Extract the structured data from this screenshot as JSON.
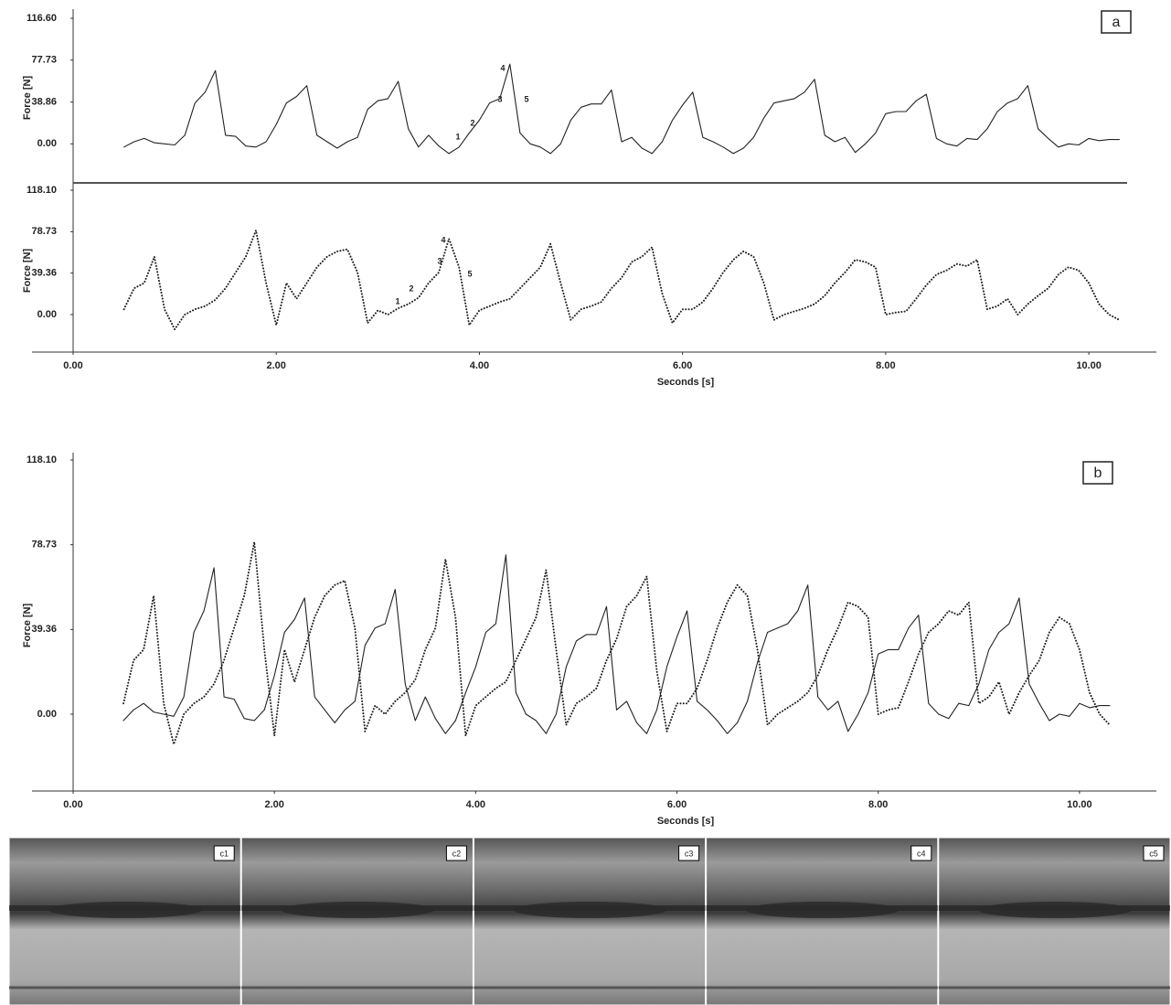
{
  "chart_data": [
    {
      "type": "line",
      "panel_label": "a",
      "ylabel": "Force [N]",
      "line_style": "solid",
      "color": "#222222",
      "ylim": [
        -32,
        116.6
      ],
      "yticks": [
        {
          "value": 0,
          "label": "0.00"
        },
        38.86,
        77.73,
        {
          "value": 116.6,
          "label": "116.60"
        }
      ],
      "xlim": [
        0,
        10.8
      ],
      "annotations": [
        "1",
        "2",
        "3",
        "4",
        "5"
      ],
      "x": [
        0.5,
        0.6,
        0.7,
        0.8,
        0.9,
        1.0,
        1.1,
        1.2,
        1.3,
        1.4,
        1.5,
        1.6,
        1.7,
        1.8,
        1.9,
        2.0,
        2.1,
        2.2,
        2.3,
        2.4,
        2.5,
        2.6,
        2.7,
        2.8,
        2.9,
        3.0,
        3.1,
        3.2,
        3.3,
        3.4,
        3.5,
        3.6,
        3.7,
        3.8,
        3.9,
        4.0,
        4.1,
        4.2,
        4.3,
        4.4,
        4.5,
        4.6,
        4.7,
        4.8,
        4.9,
        5.0,
        5.1,
        5.2,
        5.3,
        5.4,
        5.5,
        5.6,
        5.7,
        5.8,
        5.9,
        6.0,
        6.1,
        6.2,
        6.3,
        6.4,
        6.5,
        6.6,
        6.7,
        6.8,
        6.9,
        7.0,
        7.1,
        7.2,
        7.3,
        7.4,
        7.5,
        7.6,
        7.7,
        7.8,
        7.9,
        8.0,
        8.1,
        8.2,
        8.3,
        8.4,
        8.5,
        8.6,
        8.7,
        8.8,
        8.9,
        9.0,
        9.1,
        9.2,
        9.3,
        9.4,
        9.5,
        9.6,
        9.7,
        9.8,
        9.9,
        10.0,
        10.1,
        10.2,
        10.3
      ],
      "values": [
        -3,
        2,
        5,
        1,
        0,
        -1,
        8,
        38,
        48,
        68,
        8,
        7,
        -2,
        -3,
        2,
        18,
        38,
        44,
        54,
        8,
        2,
        -4,
        2,
        6,
        32,
        40,
        42,
        58,
        14,
        -3,
        8,
        -2,
        -9,
        -3,
        10,
        22,
        38,
        42,
        74,
        10,
        0,
        -3,
        -9,
        0,
        22,
        34,
        37,
        37,
        50,
        2,
        6,
        -4,
        -9,
        2,
        22,
        36,
        48,
        6,
        2,
        -3,
        -9,
        -4,
        6,
        24,
        38,
        40,
        42,
        48,
        60,
        8,
        2,
        6,
        -8,
        0,
        10,
        28,
        30,
        30,
        40,
        46,
        5,
        0,
        -2,
        5,
        4,
        14,
        30,
        38,
        42,
        54,
        14,
        5,
        -3,
        0,
        -1,
        5,
        3,
        4,
        4
      ]
    },
    {
      "type": "line",
      "ylabel": "Force [N]",
      "line_style": "dotted",
      "color": "#222222",
      "xlabel": "Seconds [s]",
      "ylim": [
        -35.6,
        118.1
      ],
      "yticks": [
        {
          "value": 0,
          "label": "0.00"
        },
        39.36,
        78.73,
        {
          "value": 118.1,
          "label": "118.10"
        }
      ],
      "xlim": [
        0,
        10.8
      ],
      "xticks": [
        {
          "value": 0,
          "label": "0.00"
        },
        {
          "value": 2,
          "label": "2.00"
        },
        {
          "value": 4,
          "label": "4.00"
        },
        {
          "value": 6,
          "label": "6.00"
        },
        {
          "value": 8,
          "label": "8.00"
        },
        {
          "value": 10,
          "label": "10.00"
        }
      ],
      "annotations": [
        "1",
        "2",
        "3",
        "4",
        "5"
      ],
      "x": [
        0.5,
        0.6,
        0.7,
        0.8,
        0.9,
        1.0,
        1.1,
        1.2,
        1.3,
        1.4,
        1.5,
        1.6,
        1.7,
        1.8,
        1.9,
        2.0,
        2.1,
        2.2,
        2.3,
        2.4,
        2.5,
        2.6,
        2.7,
        2.8,
        2.9,
        3.0,
        3.1,
        3.2,
        3.3,
        3.4,
        3.5,
        3.6,
        3.7,
        3.8,
        3.9,
        4.0,
        4.1,
        4.2,
        4.3,
        4.4,
        4.5,
        4.6,
        4.7,
        4.8,
        4.9,
        5.0,
        5.1,
        5.2,
        5.3,
        5.4,
        5.5,
        5.6,
        5.7,
        5.8,
        5.9,
        6.0,
        6.1,
        6.2,
        6.3,
        6.4,
        6.5,
        6.6,
        6.7,
        6.8,
        6.9,
        7.0,
        7.1,
        7.2,
        7.3,
        7.4,
        7.5,
        7.6,
        7.7,
        7.8,
        7.9,
        8.0,
        8.1,
        8.2,
        8.3,
        8.4,
        8.5,
        8.6,
        8.7,
        8.8,
        8.9,
        9.0,
        9.1,
        9.2,
        9.3,
        9.4,
        9.5,
        9.6,
        9.7,
        9.8,
        9.9,
        10.0,
        10.1,
        10.2,
        10.3
      ],
      "values": [
        5,
        25,
        30,
        55,
        5,
        -14,
        0,
        5,
        8,
        14,
        25,
        40,
        55,
        80,
        30,
        -10,
        30,
        15,
        30,
        45,
        55,
        60,
        62,
        40,
        -8,
        4,
        0,
        6,
        10,
        16,
        30,
        40,
        72,
        45,
        -10,
        4,
        8,
        12,
        15,
        25,
        35,
        45,
        67,
        30,
        -5,
        5,
        8,
        12,
        25,
        35,
        50,
        55,
        64,
        20,
        -8,
        5,
        5,
        12,
        25,
        40,
        52,
        60,
        55,
        30,
        -5,
        0,
        3,
        6,
        10,
        18,
        30,
        40,
        52,
        50,
        45,
        0,
        2,
        3,
        15,
        28,
        38,
        42,
        48,
        46,
        52,
        5,
        8,
        15,
        0,
        10,
        18,
        25,
        38,
        45,
        42,
        30,
        10,
        0,
        -5
      ]
    },
    {
      "type": "overlay",
      "panel_label": "b",
      "ylabel": "Force [N]",
      "xlabel": "Seconds [s]",
      "ylim": [
        -35.7,
        118.1
      ],
      "yticks": [
        {
          "value": 0,
          "label": "0.00"
        },
        39.36,
        78.73,
        {
          "value": 118.1,
          "label": "118.10"
        }
      ],
      "xlim": [
        0,
        10.9
      ],
      "xticks": [
        {
          "value": 0,
          "label": "0.00"
        },
        {
          "value": 2,
          "label": "2.00"
        },
        {
          "value": 4,
          "label": "4.00"
        },
        {
          "value": 6,
          "label": "6.00"
        },
        {
          "value": 8,
          "label": "8.00"
        },
        {
          "value": 10,
          "label": "10.00"
        }
      ]
    }
  ],
  "frames": [
    "c1",
    "c2",
    "c3",
    "c4",
    "c5"
  ]
}
